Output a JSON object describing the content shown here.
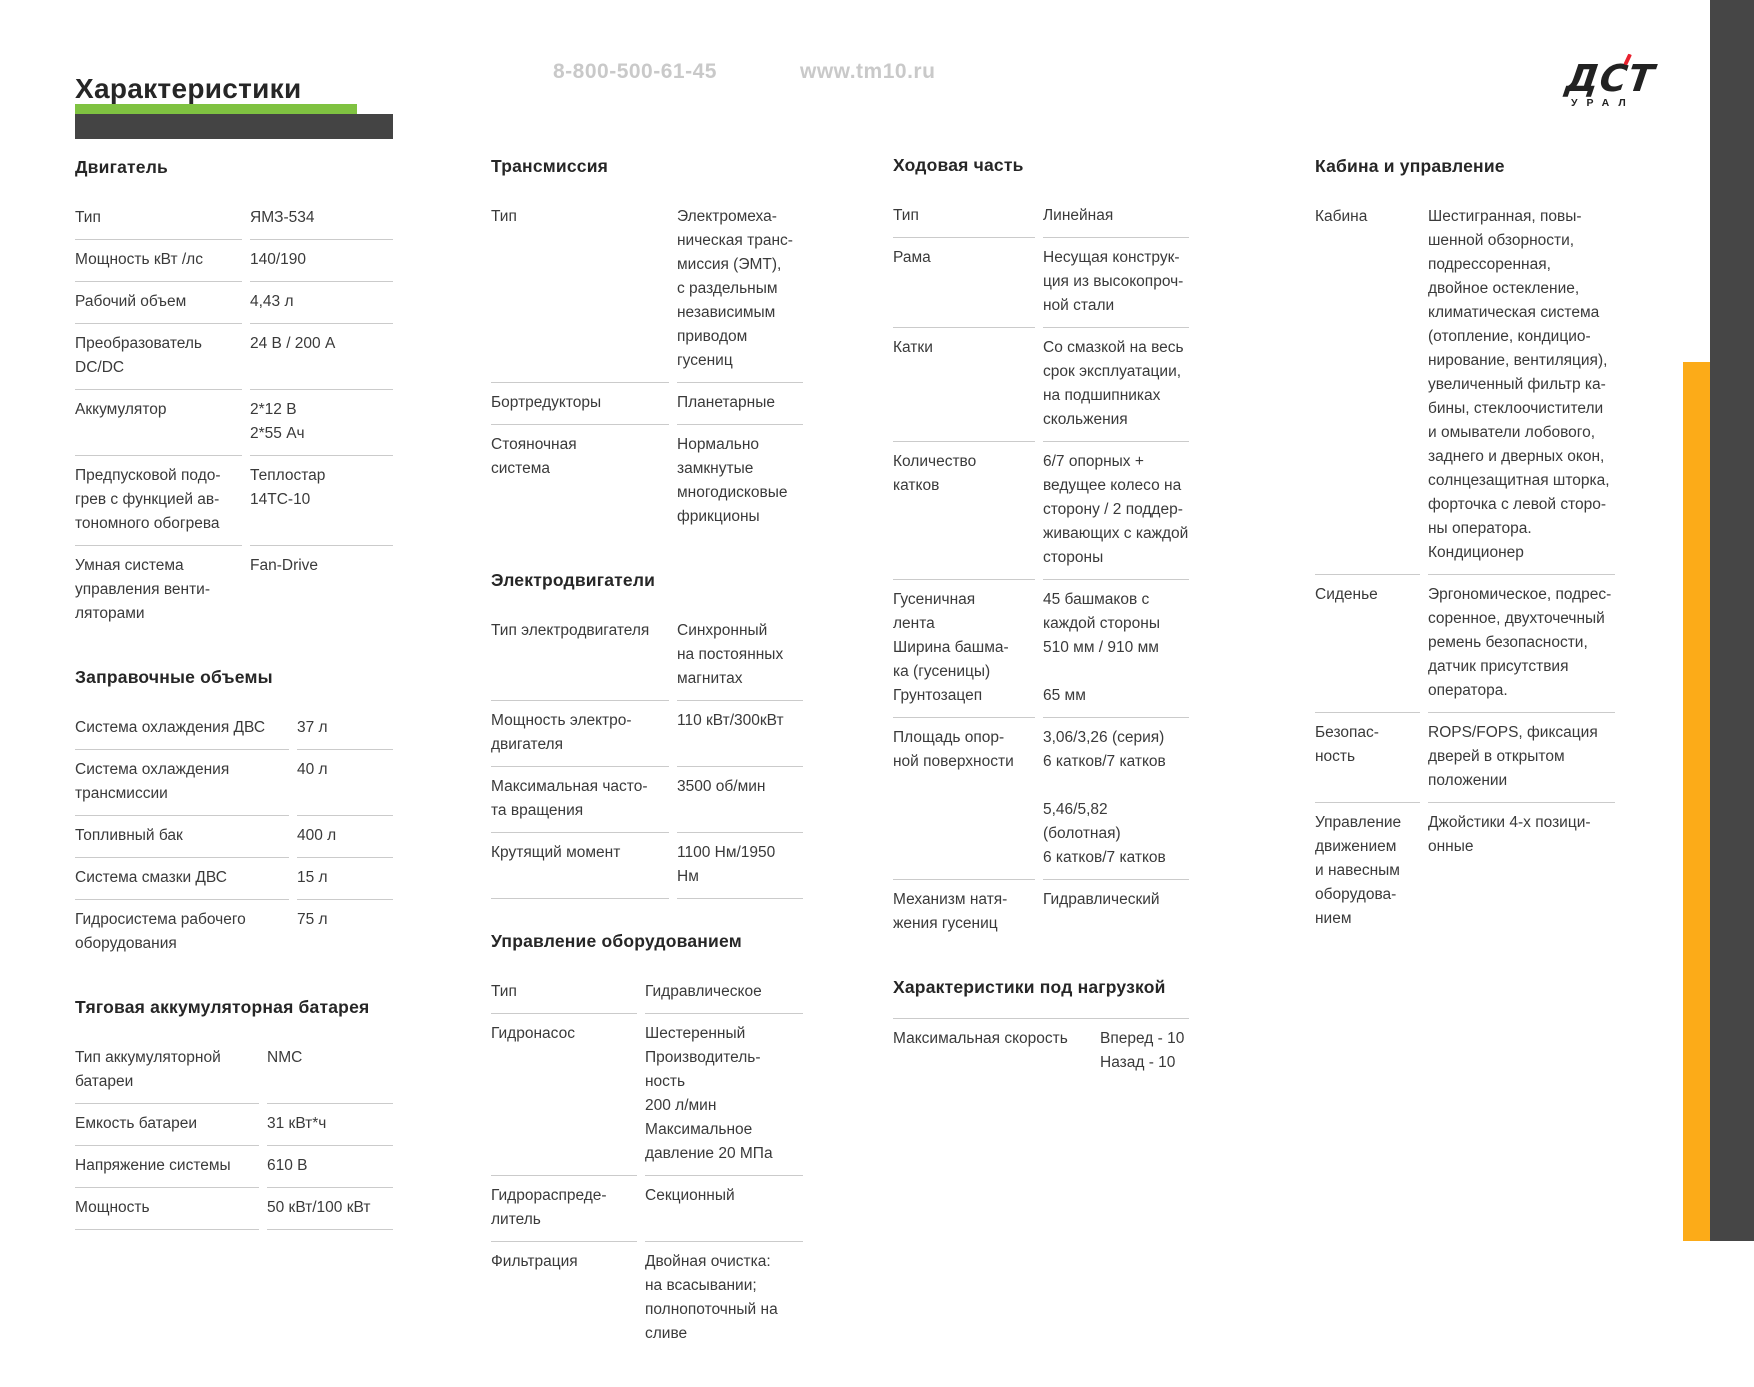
{
  "header": {
    "title": "Характеристики",
    "phone": "8-800-500-61-45",
    "website": "www.tm10.ru",
    "logo_main": "ДСТ",
    "logo_sub": "УРАЛ"
  },
  "colors": {
    "green_bar": "#7fc241",
    "dark_bar": "#444444",
    "dark_stripe": "#464646",
    "yellow_stripe": "#fcab18",
    "logo_red": "#e8212e",
    "muted_header_text": "#c9c9c9"
  },
  "columns": [
    {
      "sections": [
        {
          "title": "Двигатель",
          "rows": [
            {
              "label": "Тип",
              "value": "ЯМЗ-534"
            },
            {
              "label": "Мощность кВт /лс",
              "value": "140/190"
            },
            {
              "label": "Рабочий объем",
              "value": "4,43 л"
            },
            {
              "label": "Преобразователь\nDC/DC",
              "value": "24 В / 200 А"
            },
            {
              "label": "Аккумулятор",
              "value": "2*12 В\n2*55 Ач"
            },
            {
              "label": "Предпусковой подо-\nгрев с функцией ав-\nтономного обогрева",
              "value": "Теплостар\n14ТС-10"
            },
            {
              "label": "Умная система\nуправления венти-\nляторами",
              "value": "Fan-Drive",
              "divider": false
            }
          ]
        },
        {
          "title": "Заправочные объемы",
          "rows": [
            {
              "label": "Система охлаждения ДВС",
              "value": "37 л"
            },
            {
              "label": "Система охлаждения\nтрансмиссии",
              "value": "40 л"
            },
            {
              "label": "Топливный бак",
              "value": "400 л"
            },
            {
              "label": "Система смазки ДВС",
              "value": "15 л"
            },
            {
              "label": "Гидросистема рабочего\nоборудования",
              "value": "75 л",
              "divider": false
            }
          ]
        },
        {
          "title": "Тяговая аккумуляторная батарея",
          "rows": [
            {
              "label": "Тип аккумуляторной\nбатареи",
              "value": "NMC"
            },
            {
              "label": "Емкость батареи",
              "value": "31 кВт*ч"
            },
            {
              "label": "Напряжение системы",
              "value": "610 В"
            },
            {
              "label": "Мощность",
              "value": "50 кВт/100 кВт"
            }
          ]
        }
      ]
    },
    {
      "sections": [
        {
          "title": "Трансмиссия",
          "rows": [
            {
              "label": "Тип",
              "value": "Электромеха-\nническая транс-\nмиссия (ЭМТ),\nс раздельным\nнезависимым\nприводом\nгусениц"
            },
            {
              "label": "Бортредукторы",
              "value": "Планетарные"
            },
            {
              "label": "Стояночная\nсистема",
              "value": "Нормально\nзамкнутые\nмногодисковые\nфрикционы",
              "divider": false
            }
          ]
        },
        {
          "title": "Электродвигатели",
          "rows": [
            {
              "label": "Тип электродвигателя",
              "value": "Синхронный\nна постоянных\nмагнитах"
            },
            {
              "label": "Мощность электро-\nдвигателя",
              "value": "110 кВт/300кВт"
            },
            {
              "label": "Максимальная часто-\nта вращения",
              "value": "3500 об/мин"
            },
            {
              "label": "Крутящий момент",
              "value": "1100 Нм/1950\nНм"
            }
          ]
        },
        {
          "title": "Управление оборудованием",
          "rows": [
            {
              "label": "Тип",
              "value": "Гидравлическое"
            },
            {
              "label": "Гидронасос",
              "value": "Шестеренный\nПроизводитель-\nность\n200 л/мин\nМаксимальное\nдавление 20 МПа"
            },
            {
              "label": "Гидрораспреде-\nлитель",
              "value": "Секционный"
            },
            {
              "label": "Фильтрация",
              "value": "Двойная очистка:\nна всасывании;\nполнопоточный на\nсливе",
              "divider": false
            }
          ]
        }
      ]
    },
    {
      "sections": [
        {
          "title": "Ходовая часть",
          "rows": [
            {
              "label": "Тип",
              "value": "Линейная"
            },
            {
              "label": "Рама",
              "value": "Несущая конструк-\nция из высокопроч-\nной стали"
            },
            {
              "label": "Катки",
              "value": "Со смазкой на весь\nсрок эксплуатации,\nна подшипниках\nскольжения"
            },
            {
              "label": "Количество\nкатков",
              "value": "6/7 опорных +\nведущее колесо на\nсторону / 2 поддер-\nживающих с каждой\nстороны"
            },
            {
              "label": "Гусеничная\nлента\nШирина башма-\nка (гусеницы)\nГрунтозацеп",
              "value": "45 башмаков с\nкаждой стороны\n510 мм / 910 мм\n\n65 мм"
            },
            {
              "label": "Площадь опор-\nной поверхности",
              "value": "3,06/3,26 (серия)\n6 катков/7 катков\n\n5,46/5,82 (болотная)\n6 катков/7 катков"
            },
            {
              "label": "Механизм натя-\nжения гусениц",
              "value": "Гидравлический",
              "divider": false
            }
          ]
        },
        {
          "title": "Характеристики под нагрузкой",
          "rows": [
            {
              "label": "Максимальная скорость",
              "value": "Вперед - 10\nНазад - 10",
              "top_divider": true,
              "divider": false
            }
          ]
        }
      ]
    },
    {
      "sections": [
        {
          "title": "Кабина и управление",
          "rows": [
            {
              "label": "Кабина",
              "value": "Шестигранная, повы-\nшенной обзорности,\nподрессоренная,\nдвойное остекление,\nклиматическая система\n(отопление, кондицио-\nнирование, вентиляция),\nувеличенный фильтр ка-\nбины, стеклоочистители\nи омыватели лобового,\nзаднего и дверных окон,\nсолнцезащитная шторка,\nфорточка с левой сторо-\nны оператора.\nКондиционер"
            },
            {
              "label": "Сиденье",
              "value": "Эргономическое, подрес-\nсоренное, двухточечный\nремень безопасности,\nдатчик присутствия\nоператора."
            },
            {
              "label": "Безопас-\nность",
              "value": "ROPS/FOPS, фиксация\nдверей в открытом\nположении"
            },
            {
              "label": "Управление\nдвижением\nи навесным\nоборудова-\nнием",
              "value": "Джойстики 4-х позици-\nонные",
              "divider": false
            }
          ]
        }
      ]
    }
  ]
}
